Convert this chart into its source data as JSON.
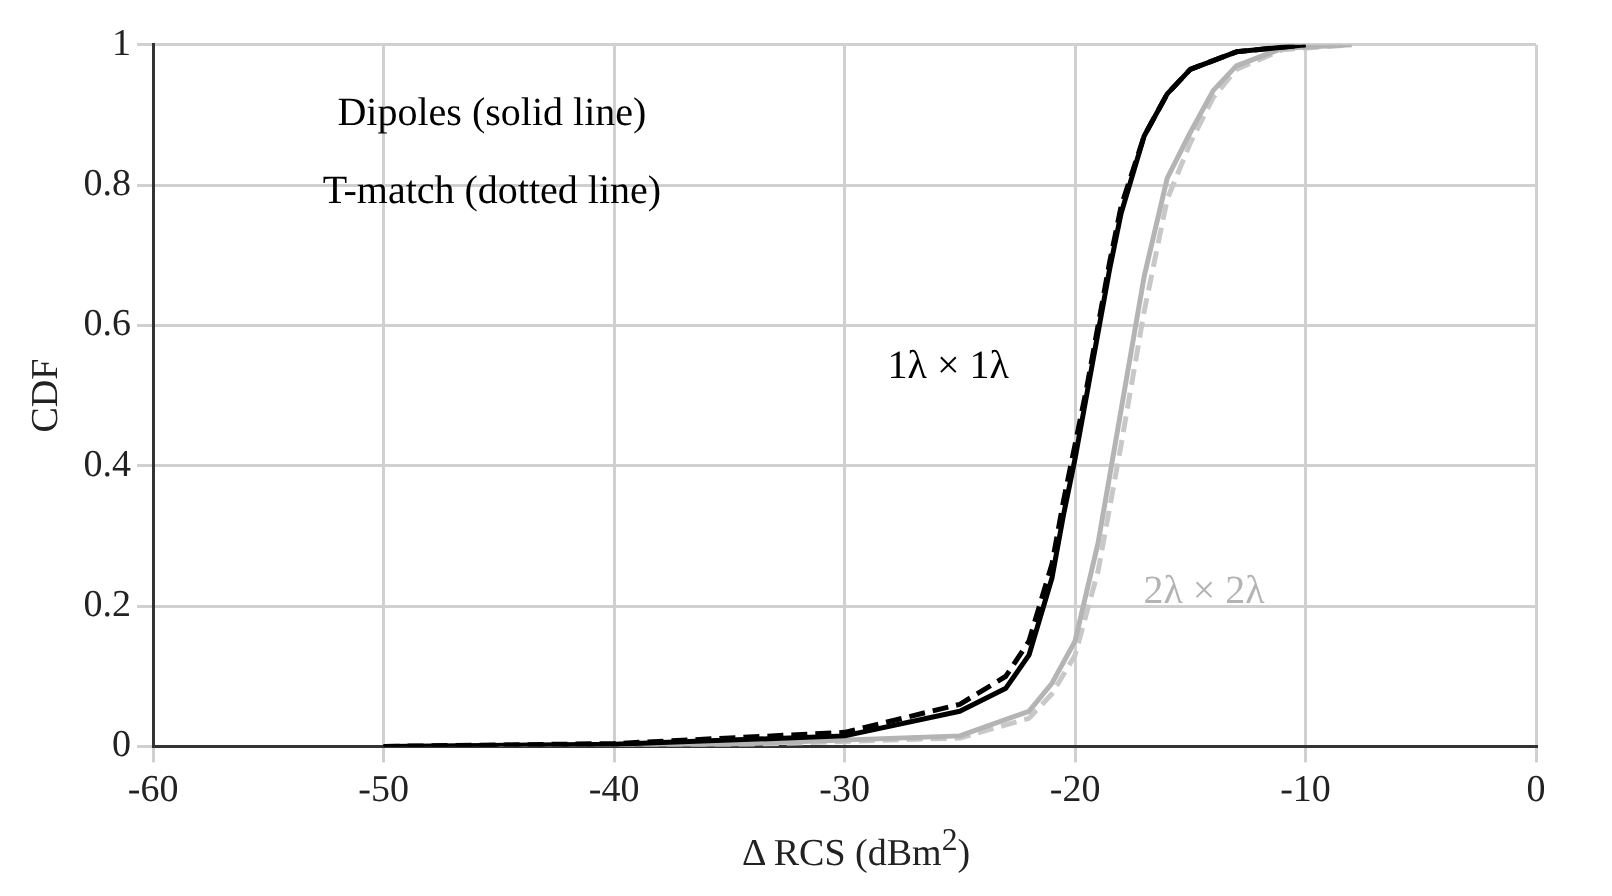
{
  "chart_data": {
    "type": "line",
    "xlabel": "Δ RCS (dBm$^{2}$)",
    "ylabel": "CDF",
    "xlim": [
      -60,
      0
    ],
    "xticks": [
      -60,
      -50,
      -40,
      -30,
      -20,
      -10,
      0
    ],
    "ylim": [
      0,
      1
    ],
    "yticks": [
      0,
      0.2,
      0.4,
      0.6,
      0.8,
      1
    ],
    "grid": true,
    "legend": false,
    "annotations": [
      "Dipoles (solid line)",
      "T-match (dotted line)",
      "1λ × 1λ",
      "2λ × 2λ"
    ],
    "series": [
      {
        "color": "#000000",
        "line_style": "solid",
        "x": [
          -50,
          -40,
          -30,
          -25,
          -23,
          -22,
          -21,
          -20.5,
          -20,
          -19.5,
          -19,
          -18.5,
          -18,
          -17,
          -16,
          -15,
          -13,
          -10
        ],
        "values": [
          0,
          0.003,
          0.015,
          0.05,
          0.083,
          0.13,
          0.24,
          0.33,
          0.41,
          0.5,
          0.59,
          0.68,
          0.76,
          0.87,
          0.93,
          0.965,
          0.99,
          1
        ]
      },
      {
        "color": "#000000",
        "line_style": "dashed",
        "x": [
          -50,
          -40,
          -30,
          -25,
          -23,
          -22,
          -21,
          -20.5,
          -20,
          -19.5,
          -19,
          -18.5,
          -18,
          -17,
          -16,
          -15,
          -13,
          -10
        ],
        "values": [
          0,
          0.004,
          0.02,
          0.06,
          0.1,
          0.15,
          0.26,
          0.35,
          0.43,
          0.51,
          0.6,
          0.69,
          0.77,
          0.87,
          0.93,
          0.965,
          0.99,
          1
        ]
      },
      {
        "color": "#b4b4b4",
        "line_style": "solid",
        "x": [
          -45,
          -35,
          -25,
          -22,
          -21,
          -20,
          -19,
          -18,
          -17,
          -16,
          -15,
          -14,
          -13,
          -11,
          -8
        ],
        "values": [
          0,
          0.003,
          0.015,
          0.05,
          0.09,
          0.15,
          0.29,
          0.48,
          0.67,
          0.81,
          0.875,
          0.935,
          0.97,
          0.995,
          1
        ]
      },
      {
        "color": "#c8c8c8",
        "line_style": "dashed",
        "x": [
          -45,
          -35,
          -25,
          -22,
          -21,
          -20,
          -19,
          -18,
          -17,
          -16,
          -15,
          -14,
          -13,
          -11,
          -8
        ],
        "values": [
          0,
          0.002,
          0.012,
          0.04,
          0.075,
          0.13,
          0.25,
          0.43,
          0.62,
          0.78,
          0.86,
          0.925,
          0.965,
          0.993,
          1
        ]
      }
    ]
  }
}
